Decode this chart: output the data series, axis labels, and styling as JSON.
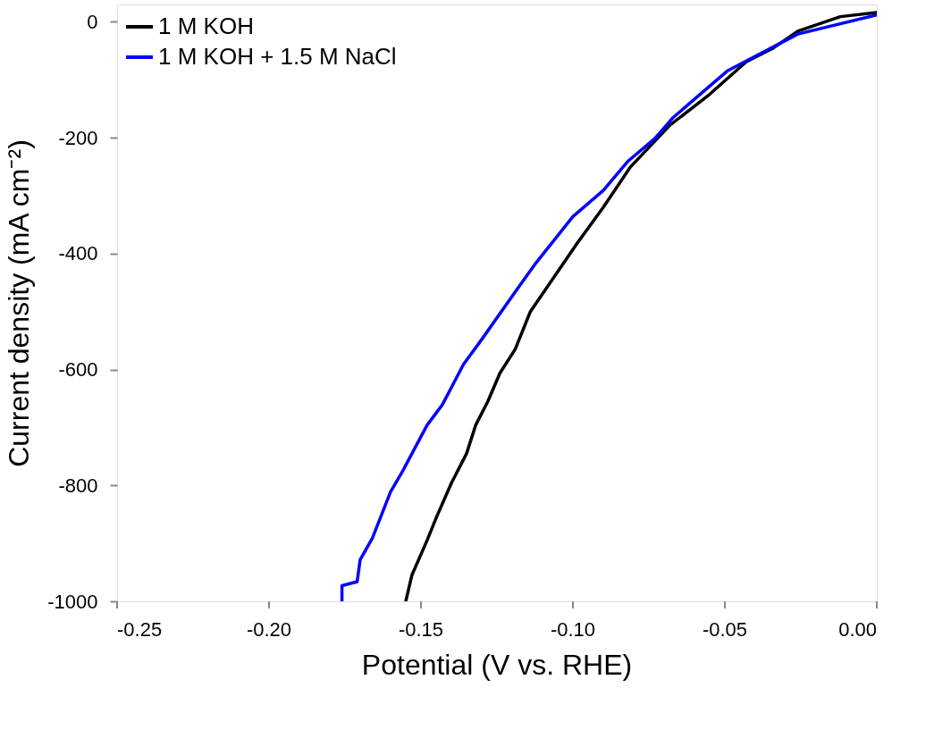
{
  "chart_data": {
    "type": "line",
    "xlabel": "Potential (V vs. RHE)",
    "ylabel": "Current density (mA cm⁻²)",
    "xlim": [
      -0.25,
      0.0
    ],
    "ylim": [
      -1000,
      30
    ],
    "xticks": [
      {
        "value": -0.25,
        "label": "-0.25"
      },
      {
        "value": -0.2,
        "label": "-0.20"
      },
      {
        "value": -0.15,
        "label": "-0.15"
      },
      {
        "value": -0.1,
        "label": "-0.10"
      },
      {
        "value": -0.05,
        "label": "-0.05"
      },
      {
        "value": 0.0,
        "label": "0.00"
      }
    ],
    "yticks": [
      {
        "value": -1000,
        "label": "-1000"
      },
      {
        "value": -800,
        "label": "-800"
      },
      {
        "value": -600,
        "label": "-600"
      },
      {
        "value": -400,
        "label": "-400"
      },
      {
        "value": -200,
        "label": "-200"
      },
      0
    ],
    "grid": false,
    "legend": "top left",
    "line_style": "solid",
    "marker": "none",
    "series": [
      {
        "name": "1 M KOH",
        "color": "#000000",
        "x": [
          -0.155,
          -0.153,
          -0.148,
          -0.145,
          -0.14,
          -0.135,
          -0.132,
          -0.128,
          -0.124,
          -0.119,
          -0.114,
          -0.099,
          -0.09,
          -0.081,
          -0.068,
          -0.055,
          -0.043,
          -0.034,
          -0.026,
          -0.012,
          0.0
        ],
        "values": [
          -1000,
          -955,
          -895,
          -856,
          -796,
          -745,
          -696,
          -655,
          -606,
          -565,
          -500,
          -385,
          -320,
          -250,
          -178,
          -125,
          -69,
          -45,
          -16,
          9,
          16
        ]
      },
      {
        "name": "1 M KOH + 1.5 M NaCl",
        "color": "#0000ff",
        "x": [
          -0.176,
          -0.176,
          -0.171,
          -0.17,
          -0.166,
          -0.16,
          -0.156,
          -0.148,
          -0.143,
          -0.136,
          -0.13,
          -0.119,
          -0.112,
          -0.1,
          -0.09,
          -0.082,
          -0.073,
          -0.067,
          -0.049,
          -0.026,
          0.0
        ],
        "values": [
          -1000,
          -973,
          -966,
          -928,
          -891,
          -811,
          -775,
          -696,
          -661,
          -591,
          -548,
          -466,
          -415,
          -336,
          -291,
          -241,
          -201,
          -165,
          -84,
          -21,
          12
        ]
      }
    ]
  }
}
